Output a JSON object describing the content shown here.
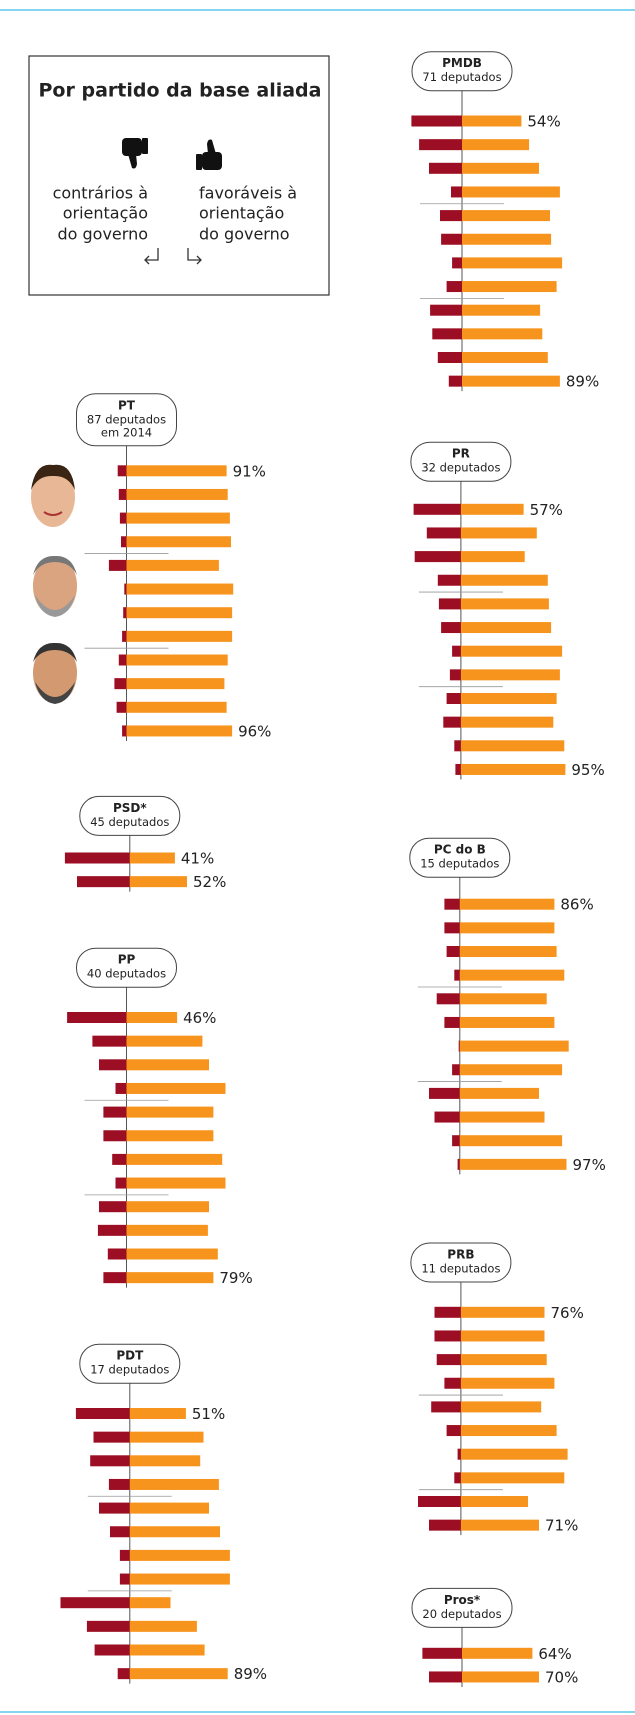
{
  "header": {
    "title": "Por partido da base aliada",
    "against": [
      "contrários à",
      "orientação",
      "do governo"
    ],
    "for": [
      "favoráveis à",
      "orientação",
      "do governo"
    ]
  },
  "chart_data": [
    {
      "type": "bar",
      "title": "PMDB",
      "subtitle": [
        "71 deputados"
      ],
      "series": [
        {
          "color": "#9b0e23",
          "values": [
            46,
            39,
            30,
            10,
            20,
            19,
            9,
            14,
            29,
            27,
            22,
            12
          ]
        },
        {
          "color": "#f7941d",
          "values": [
            54,
            61,
            70,
            89,
            80,
            81,
            91,
            86,
            71,
            73,
            78,
            89
          ],
          "value_labels": [
            "54%",
            null,
            null,
            null,
            null,
            null,
            null,
            null,
            null,
            null,
            null,
            "89%"
          ]
        }
      ]
    },
    {
      "type": "bar",
      "title": "PT",
      "subtitle": [
        "87 deputados",
        "em 2014"
      ],
      "series": [
        {
          "color": "#9b0e23",
          "values": [
            8,
            7,
            6,
            5,
            16,
            2,
            3,
            4,
            7,
            11,
            9,
            4
          ]
        },
        {
          "color": "#f7941d",
          "values": [
            91,
            92,
            94,
            95,
            84,
            97,
            96,
            96,
            92,
            89,
            91,
            96
          ],
          "value_labels": [
            "91%",
            null,
            null,
            null,
            null,
            null,
            null,
            null,
            null,
            null,
            null,
            "96%"
          ]
        }
      ]
    },
    {
      "type": "bar",
      "title": "PR",
      "subtitle": [
        "32 deputados"
      ],
      "series": [
        {
          "color": "#9b0e23",
          "values": [
            43,
            31,
            42,
            21,
            20,
            18,
            8,
            10,
            13,
            16,
            6,
            5
          ]
        },
        {
          "color": "#f7941d",
          "values": [
            57,
            69,
            58,
            79,
            80,
            82,
            92,
            90,
            87,
            84,
            94,
            95
          ],
          "value_labels": [
            "57%",
            null,
            null,
            null,
            null,
            null,
            null,
            null,
            null,
            null,
            null,
            "95%"
          ]
        }
      ]
    },
    {
      "type": "bar",
      "title": "PSD*",
      "subtitle": [
        "45 deputados"
      ],
      "series": [
        {
          "color": "#9b0e23",
          "values": [
            59,
            48
          ]
        },
        {
          "color": "#f7941d",
          "values": [
            41,
            52
          ],
          "value_labels": [
            "41%",
            "52%"
          ]
        }
      ]
    },
    {
      "type": "bar",
      "title": "PC do B",
      "subtitle": [
        "15 deputados"
      ],
      "series": [
        {
          "color": "#9b0e23",
          "values": [
            14,
            14,
            12,
            5,
            21,
            14,
            1,
            7,
            28,
            23,
            7,
            2
          ]
        },
        {
          "color": "#f7941d",
          "values": [
            86,
            86,
            88,
            95,
            79,
            86,
            99,
            93,
            72,
            77,
            93,
            97
          ],
          "value_labels": [
            "86%",
            null,
            null,
            null,
            null,
            null,
            null,
            null,
            null,
            null,
            null,
            "97%"
          ]
        }
      ]
    },
    {
      "type": "bar",
      "title": "PP",
      "subtitle": [
        "40 deputados"
      ],
      "series": [
        {
          "color": "#9b0e23",
          "values": [
            54,
            31,
            25,
            10,
            21,
            21,
            13,
            10,
            25,
            26,
            17,
            21
          ]
        },
        {
          "color": "#f7941d",
          "values": [
            46,
            69,
            75,
            90,
            79,
            79,
            87,
            90,
            75,
            74,
            83,
            79
          ],
          "value_labels": [
            "46%",
            null,
            null,
            null,
            null,
            null,
            null,
            null,
            null,
            null,
            null,
            "79%"
          ]
        }
      ]
    },
    {
      "type": "bar",
      "title": "PRB",
      "subtitle": [
        "11 deputados"
      ],
      "series": [
        {
          "color": "#9b0e23",
          "values": [
            24,
            24,
            22,
            15,
            27,
            13,
            3,
            6,
            39,
            29
          ]
        },
        {
          "color": "#f7941d",
          "values": [
            76,
            76,
            78,
            85,
            73,
            87,
            97,
            94,
            61,
            71
          ],
          "value_labels": [
            "76%",
            null,
            null,
            null,
            null,
            null,
            null,
            null,
            null,
            "71%"
          ]
        }
      ]
    },
    {
      "type": "bar",
      "title": "PDT",
      "subtitle": [
        "17 deputados"
      ],
      "series": [
        {
          "color": "#9b0e23",
          "values": [
            49,
            33,
            36,
            19,
            28,
            18,
            9,
            9,
            63,
            39,
            32,
            11
          ]
        },
        {
          "color": "#f7941d",
          "values": [
            51,
            67,
            64,
            81,
            72,
            82,
            91,
            91,
            37,
            61,
            68,
            89
          ],
          "value_labels": [
            "51%",
            null,
            null,
            null,
            null,
            null,
            null,
            null,
            null,
            null,
            null,
            "89%"
          ]
        }
      ]
    },
    {
      "type": "bar",
      "title": "Pros*",
      "subtitle": [
        "20 deputados"
      ],
      "series": [
        {
          "color": "#9b0e23",
          "values": [
            36,
            30
          ]
        },
        {
          "color": "#f7941d",
          "values": [
            64,
            70
          ],
          "value_labels": [
            "64%",
            "70%"
          ]
        }
      ]
    }
  ]
}
